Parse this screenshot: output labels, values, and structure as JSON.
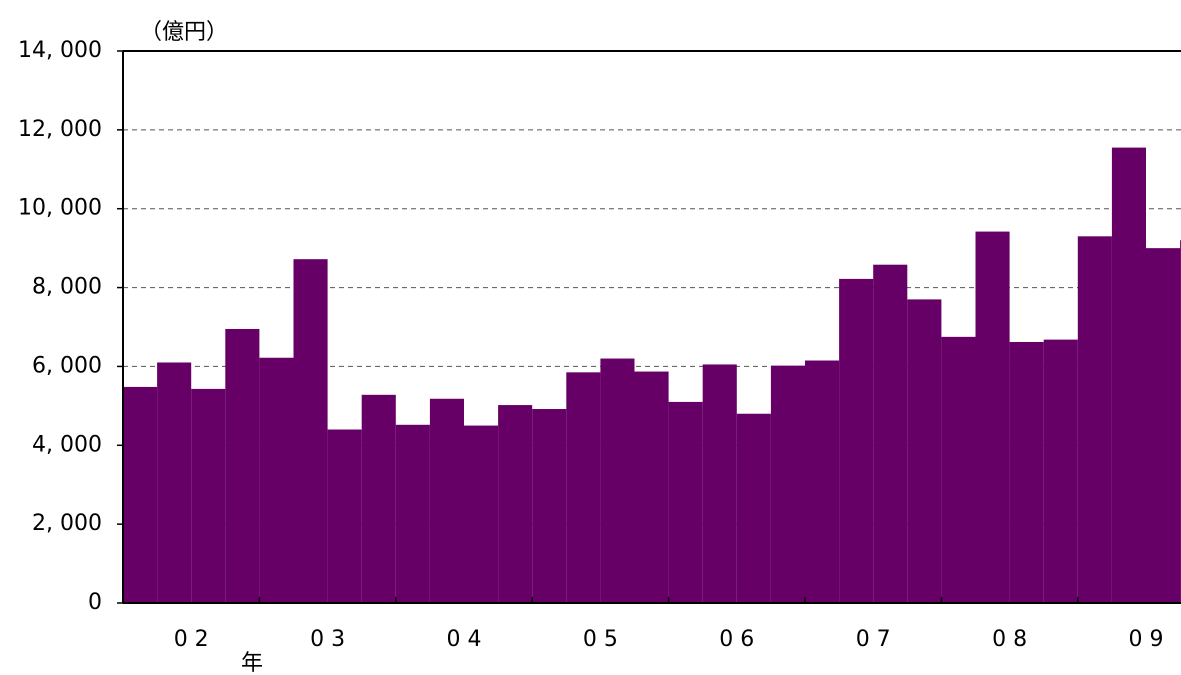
{
  "chart_data": {
    "type": "bar",
    "unit_label": "（億円）",
    "x_label": "年",
    "categories": [
      null,
      null,
      "0 2",
      null,
      null,
      null,
      "0 3",
      null,
      null,
      null,
      "0 4",
      null,
      null,
      null,
      "0 5",
      null,
      null,
      null,
      "0 6",
      null,
      null,
      null,
      "0 7",
      null,
      null,
      null,
      "0 8",
      null,
      null,
      null,
      "0 9",
      null
    ],
    "values": [
      5480,
      6100,
      5430,
      6950,
      6220,
      8720,
      4400,
      5280,
      4520,
      5180,
      4500,
      5020,
      4920,
      5850,
      6200,
      5870,
      5100,
      6050,
      4800,
      6020,
      6150,
      8220,
      8580,
      7700,
      6750,
      9420,
      6620,
      6680,
      9300,
      11550,
      9000,
      9200
    ],
    "color": "#660066",
    "ylim": [
      0,
      14000
    ],
    "yticks": [
      0,
      {
        "value": 2000,
        "label": "2, 000"
      },
      {
        "value": 4000,
        "label": "4, 000"
      },
      {
        "value": 6000,
        "label": "6, 000"
      },
      {
        "value": 8000,
        "label": "8, 000"
      },
      {
        "value": 10000,
        "label": "10, 000"
      },
      {
        "value": 12000,
        "label": "12, 000"
      },
      {
        "value": 14000,
        "label": "14, 000"
      }
    ],
    "grid": true
  }
}
